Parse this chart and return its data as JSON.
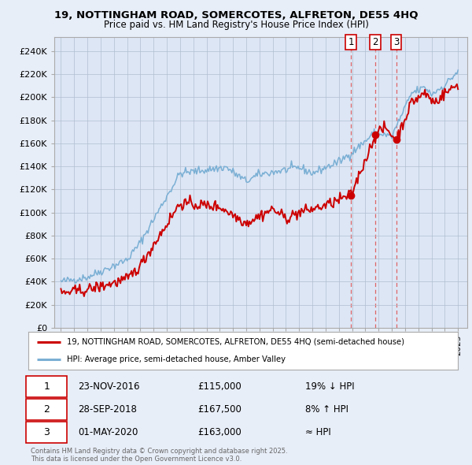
{
  "title1": "19, NOTTINGHAM ROAD, SOMERCOTES, ALFRETON, DE55 4HQ",
  "title2": "Price paid vs. HM Land Registry's House Price Index (HPI)",
  "ylabel_ticks": [
    "£0",
    "£20K",
    "£40K",
    "£60K",
    "£80K",
    "£100K",
    "£120K",
    "£140K",
    "£160K",
    "£180K",
    "£200K",
    "£220K",
    "£240K"
  ],
  "ytick_values": [
    0,
    20000,
    40000,
    60000,
    80000,
    100000,
    120000,
    140000,
    160000,
    180000,
    200000,
    220000,
    240000
  ],
  "ylim": [
    0,
    252000
  ],
  "legend_line1": "19, NOTTINGHAM ROAD, SOMERCOTES, ALFRETON, DE55 4HQ (semi-detached house)",
  "legend_line2": "HPI: Average price, semi-detached house, Amber Valley",
  "transactions": [
    {
      "num": 1,
      "date": "23-NOV-2016",
      "price": "£115,000",
      "hpi": "19% ↓ HPI",
      "x": 2016.9,
      "price_val": 115000
    },
    {
      "num": 2,
      "date": "28-SEP-2018",
      "price": "£167,500",
      "hpi": "8% ↑ HPI",
      "x": 2018.75,
      "price_val": 167500
    },
    {
      "num": 3,
      "date": "01-MAY-2020",
      "price": "£163,000",
      "hpi": "≈ HPI",
      "x": 2020.33,
      "price_val": 163000
    }
  ],
  "footnote": "Contains HM Land Registry data © Crown copyright and database right 2025.\nThis data is licensed under the Open Government Licence v3.0.",
  "bg_color": "#e8eef8",
  "plot_bg_color": "#dde6f5",
  "red_line_color": "#cc0000",
  "blue_line_color": "#7aafd4",
  "vline_color": "#dd6666",
  "transaction_marker_color": "#cc0000",
  "grid_color": "#b0bed0"
}
